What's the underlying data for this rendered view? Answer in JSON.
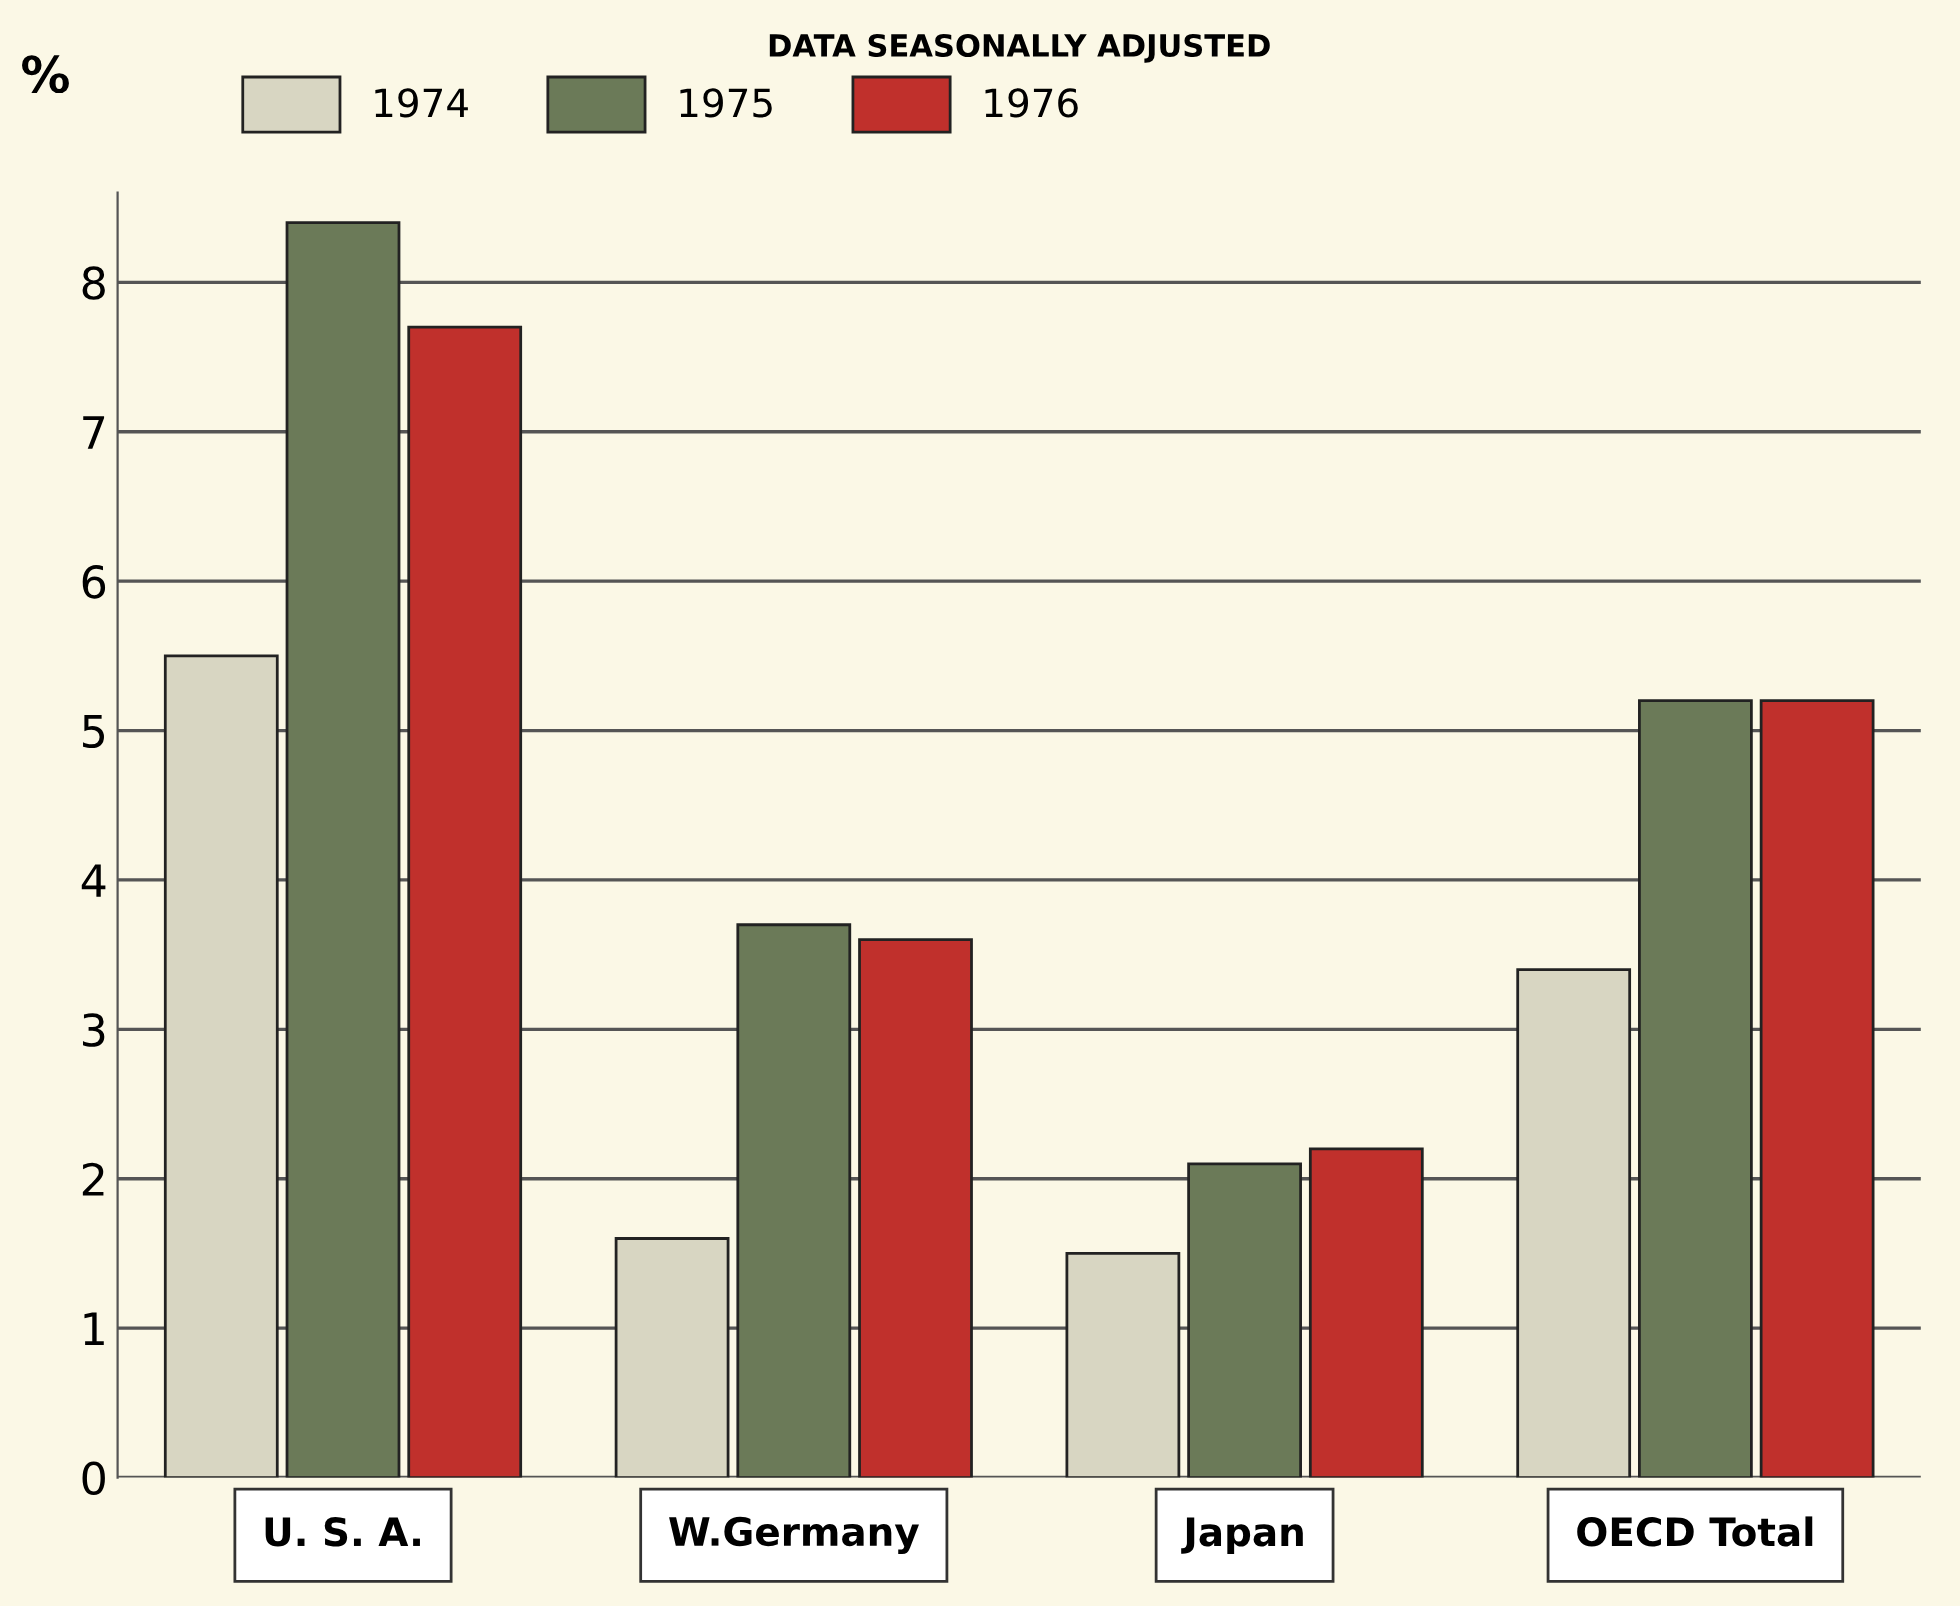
{
  "chart_data": {
    "type": "bar",
    "subtitle": "DATA SEASONALLY ADJUSTED",
    "ylabel": "%",
    "categories": [
      "U. S. A.",
      "W.Germany",
      "Japan",
      "OECD Total"
    ],
    "series": [
      {
        "name": "1974",
        "color": "#d8d6c2",
        "values": [
          5.5,
          1.6,
          1.5,
          3.4
        ]
      },
      {
        "name": "1975",
        "color": "#6b7a58",
        "values": [
          8.4,
          3.7,
          2.1,
          5.2
        ]
      },
      {
        "name": "1976",
        "color": "#c0302c",
        "values": [
          7.7,
          3.6,
          2.2,
          5.2
        ]
      }
    ],
    "ylim": [
      0,
      8.6
    ],
    "yticks": [
      0,
      1,
      2,
      3,
      4,
      5,
      6,
      7,
      8
    ],
    "grid": "y",
    "legend": "top left"
  }
}
